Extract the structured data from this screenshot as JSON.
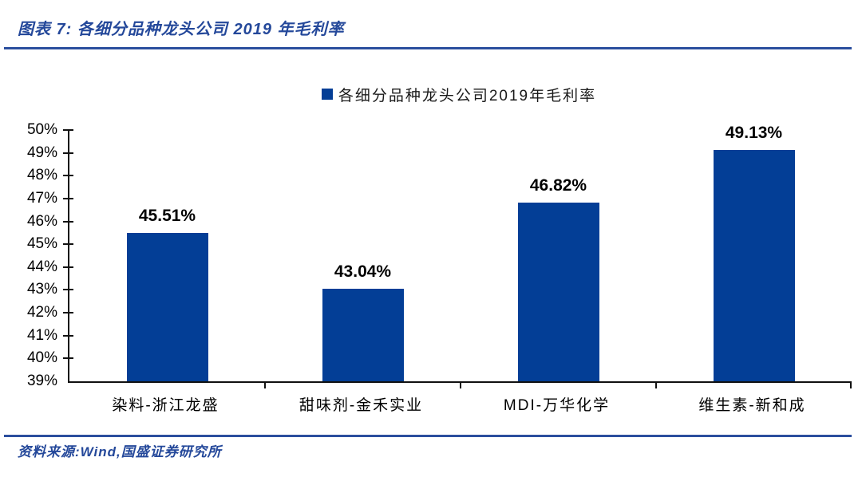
{
  "header": {
    "title": "图表 7: 各细分品种龙头公司 2019 年毛利率"
  },
  "footer": {
    "source": "资料来源:Wind,国盛证券研究所"
  },
  "colors": {
    "bar": "#033e96",
    "accent_text": "#24489a",
    "rule": "#2b4f9e",
    "axis": "#111111"
  },
  "chart_data": {
    "type": "bar",
    "title": "各细分品种龙头公司2019年毛利率",
    "legend": [
      "各细分品种龙头公司2019年毛利率"
    ],
    "legend_position": "top-center",
    "categories": [
      "染料-浙江龙盛",
      "甜味剂-金禾实业",
      "MDI-万华化学",
      "维生素-新和成"
    ],
    "values": [
      45.51,
      43.04,
      46.82,
      49.13
    ],
    "data_labels": [
      "45.51%",
      "43.04%",
      "46.82%",
      "49.13%"
    ],
    "ylim": [
      39,
      50
    ],
    "ytick_step": 1,
    "ytick_labels": [
      "50%",
      "49%",
      "48%",
      "47%",
      "46%",
      "45%",
      "44%",
      "43%",
      "42%",
      "41%",
      "40%",
      "39%"
    ],
    "grid": false,
    "bar_color": "#033e96"
  }
}
